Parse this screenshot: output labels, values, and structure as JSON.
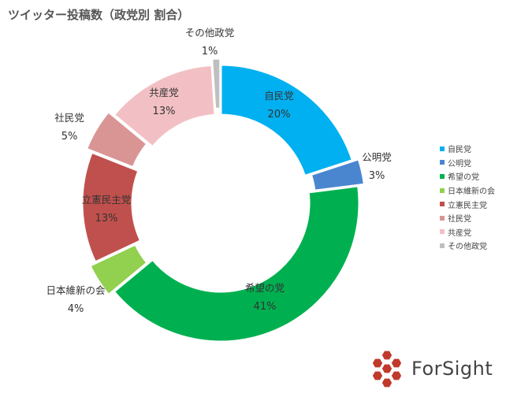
{
  "title": "ツイッター投稿数（政党別 割合）",
  "chart_data": {
    "type": "pie",
    "donut": true,
    "title": "ツイッター投稿数（政党別 割合）",
    "legend_position": "right",
    "categories": [
      "自民党",
      "公明党",
      "希望の党",
      "日本維新の会",
      "立憲民主党",
      "社民党",
      "共産党",
      "その他政党"
    ],
    "values": [
      20,
      3,
      41,
      4,
      13,
      5,
      13,
      1
    ],
    "value_labels": [
      "20%",
      "3%",
      "41%",
      "4%",
      "13%",
      "5%",
      "13%",
      "1%"
    ],
    "colors": [
      "#00b0f0",
      "#4a86d0",
      "#00b050",
      "#92d050",
      "#c0504d",
      "#d99594",
      "#f2c0c4",
      "#bfbfbf"
    ],
    "exploded": [
      false,
      true,
      false,
      true,
      false,
      true,
      false,
      true
    ]
  },
  "logo": {
    "text": "ForSight",
    "color": "#c0392b"
  }
}
